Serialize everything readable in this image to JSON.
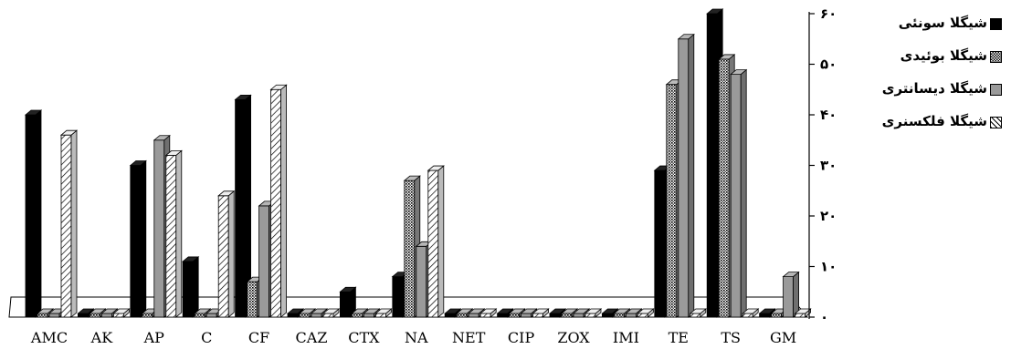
{
  "chart_data": {
    "type": "bar",
    "title": "",
    "xlabel": "",
    "ylabel": "",
    "categories": [
      "AMC",
      "AK",
      "AP",
      "C",
      "CF",
      "CAZ",
      "CTX",
      "NA",
      "NET",
      "CIP",
      "ZOX",
      "IMI",
      "TE",
      "TS",
      "GM"
    ],
    "ylim": [
      0,
      60
    ],
    "yticks": [
      {
        "value": 0,
        "label": "۰"
      },
      {
        "value": 10,
        "label": "۱۰"
      },
      {
        "value": 20,
        "label": "۲۰"
      },
      {
        "value": 30,
        "label": "۳۰"
      },
      {
        "value": 40,
        "label": "۴۰"
      },
      {
        "value": 50,
        "label": "۵۰"
      },
      {
        "value": 60,
        "label": "۶۰"
      }
    ],
    "series": [
      {
        "name": "شیگلا سونئی",
        "pattern": "solid",
        "color": "#000000",
        "values": [
          40,
          0,
          30,
          11,
          43,
          0,
          5,
          8,
          0,
          0,
          0,
          0,
          29,
          60,
          0
        ]
      },
      {
        "name": "شیگلا بوئیدی",
        "pattern": "dots",
        "color": "#999999",
        "values": [
          0,
          0,
          0,
          0,
          7,
          0,
          0,
          27,
          0,
          0,
          0,
          0,
          46,
          51,
          0
        ]
      },
      {
        "name": "شیگلا دیسانتری",
        "pattern": "gray",
        "color": "#9a9a9a",
        "values": [
          0,
          0,
          35,
          0,
          22,
          0,
          0,
          14,
          0,
          0,
          0,
          0,
          55,
          48,
          8
        ]
      },
      {
        "name": "شیگلا فلکسنری",
        "pattern": "hatch",
        "color": "#cccccc",
        "values": [
          36,
          0,
          32,
          24,
          45,
          0,
          0,
          29,
          0,
          0,
          0,
          0,
          0,
          0,
          0
        ]
      }
    ],
    "legend": "right",
    "grid": false
  }
}
